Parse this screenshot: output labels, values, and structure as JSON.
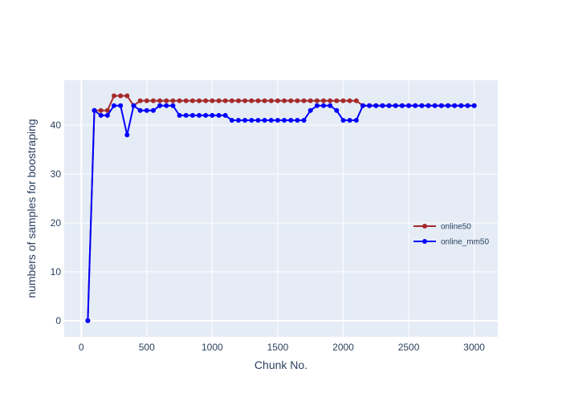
{
  "chart_data": {
    "type": "line",
    "title": "",
    "xlabel": "Chunk No.",
    "ylabel": "numbers of samples for boostraping",
    "xlim": [
      -130,
      3180
    ],
    "ylim": [
      -3.3,
      49.2
    ],
    "x_ticks": [
      0,
      500,
      1000,
      1500,
      2000,
      2500,
      3000
    ],
    "y_ticks": [
      0,
      10,
      20,
      30,
      40
    ],
    "grid": true,
    "legend_position": "right",
    "colors": {
      "plot_bg": "#E5ECF6",
      "grid": "#ffffff",
      "online50": "#A52A2A",
      "online_mm50": "#0000FF",
      "text": "#2a3f5f"
    },
    "x": [
      50,
      100,
      150,
      200,
      250,
      300,
      350,
      400,
      450,
      500,
      550,
      600,
      650,
      700,
      750,
      800,
      850,
      900,
      950,
      1000,
      1050,
      1100,
      1150,
      1200,
      1250,
      1300,
      1350,
      1400,
      1450,
      1500,
      1550,
      1600,
      1650,
      1700,
      1750,
      1800,
      1850,
      1900,
      1950,
      2000,
      2050,
      2100,
      2150,
      2200,
      2250,
      2300,
      2350,
      2400,
      2450,
      2500,
      2550,
      2600,
      2650,
      2700,
      2750,
      2800,
      2850,
      2900,
      2950,
      3000
    ],
    "series": [
      {
        "name": "online50",
        "values": [
          0,
          43,
          43,
          43,
          46,
          46,
          46,
          44,
          45,
          45,
          45,
          45,
          45,
          45,
          45,
          45,
          45,
          45,
          45,
          45,
          45,
          45,
          45,
          45,
          45,
          45,
          45,
          45,
          45,
          45,
          45,
          45,
          45,
          45,
          45,
          45,
          45,
          45,
          45,
          45,
          45,
          45,
          44,
          44,
          44,
          44,
          44,
          44,
          44,
          44,
          44,
          44,
          44,
          44,
          44,
          44,
          44,
          44,
          44,
          44
        ]
      },
      {
        "name": "online_mm50",
        "values": [
          0,
          43,
          42,
          42,
          44,
          44,
          38,
          44,
          43,
          43,
          43,
          44,
          44,
          44,
          42,
          42,
          42,
          42,
          42,
          42,
          42,
          42,
          41,
          41,
          41,
          41,
          41,
          41,
          41,
          41,
          41,
          41,
          41,
          41,
          43,
          44,
          44,
          44,
          43,
          41,
          41,
          41,
          44,
          44,
          44,
          44,
          44,
          44,
          44,
          44,
          44,
          44,
          44,
          44,
          44,
          44,
          44,
          44,
          44,
          44
        ]
      }
    ]
  }
}
